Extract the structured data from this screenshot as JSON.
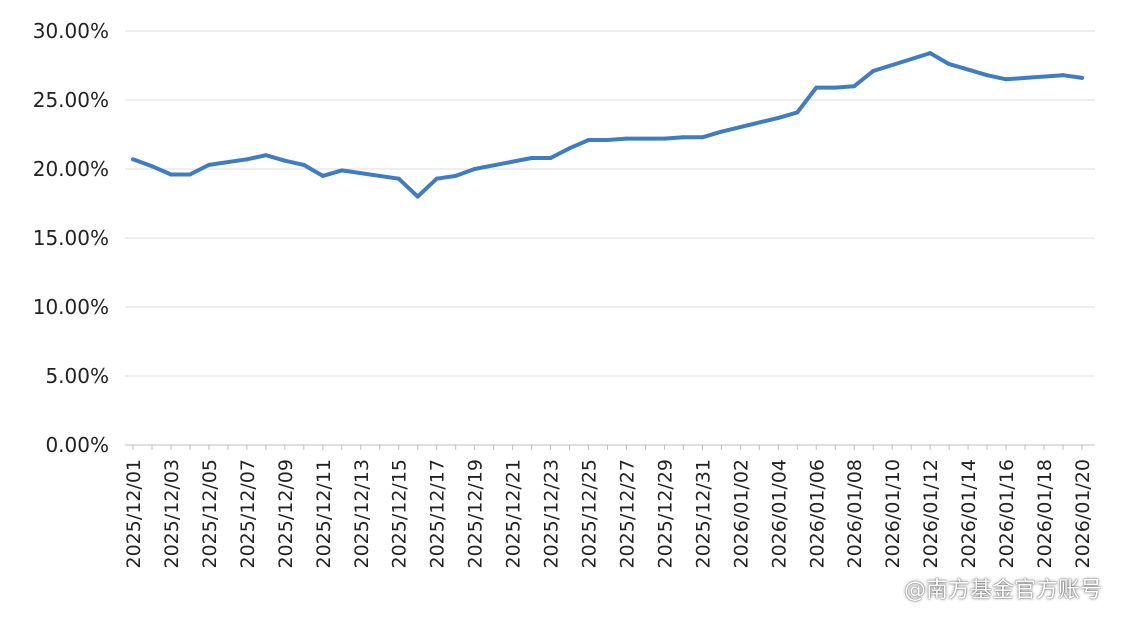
{
  "chart_data": {
    "type": "line",
    "title": "",
    "xlabel": "",
    "ylabel": "",
    "ylim": [
      0,
      30
    ],
    "y_ticks": [
      "0.00%",
      "5.00%",
      "10.00%",
      "15.00%",
      "20.00%",
      "25.00%",
      "30.00%"
    ],
    "x_tick_labels": [
      "2025/12/01",
      "2025/12/03",
      "2025/12/05",
      "2025/12/07",
      "2025/12/09",
      "2025/12/11",
      "2025/12/13",
      "2025/12/15",
      "2025/12/17",
      "2025/12/19",
      "2025/12/21",
      "2025/12/23",
      "2025/12/25",
      "2025/12/27",
      "2025/12/29",
      "2025/12/31",
      "2026/01/02",
      "2026/01/04",
      "2026/01/06",
      "2026/01/08",
      "2026/01/10",
      "2026/01/12",
      "2026/01/14",
      "2026/01/16",
      "2026/01/18",
      "2026/01/20"
    ],
    "grid": "horizontal",
    "legend": "none",
    "series": [
      {
        "color": "#3f7cc2",
        "points": [
          [
            "2025/12/01",
            20.7
          ],
          [
            "2025/12/02",
            20.2
          ],
          [
            "2025/12/03",
            19.6
          ],
          [
            "2025/12/04",
            19.6
          ],
          [
            "2025/12/05",
            20.3
          ],
          [
            "2025/12/07",
            20.7
          ],
          [
            "2025/12/08",
            21.0
          ],
          [
            "2025/12/09",
            20.6
          ],
          [
            "2025/12/10",
            20.3
          ],
          [
            "2025/12/11",
            19.5
          ],
          [
            "2025/12/12",
            19.9
          ],
          [
            "2025/12/15",
            19.3
          ],
          [
            "2025/12/16",
            18.0
          ],
          [
            "2025/12/17",
            19.3
          ],
          [
            "2025/12/18",
            19.5
          ],
          [
            "2025/12/19",
            20.0
          ],
          [
            "2025/12/22",
            20.8
          ],
          [
            "2025/12/23",
            20.8
          ],
          [
            "2025/12/24",
            21.5
          ],
          [
            "2025/12/25",
            22.1
          ],
          [
            "2025/12/26",
            22.1
          ],
          [
            "2025/12/27",
            22.2
          ],
          [
            "2025/12/29",
            22.2
          ],
          [
            "2025/12/30",
            22.3
          ],
          [
            "2025/12/31",
            22.3
          ],
          [
            "2026/01/01",
            22.7
          ],
          [
            "2026/01/04",
            23.7
          ],
          [
            "2026/01/05",
            24.1
          ],
          [
            "2026/01/06",
            25.9
          ],
          [
            "2026/01/07",
            25.9
          ],
          [
            "2026/01/08",
            26.0
          ],
          [
            "2026/01/09",
            27.1
          ],
          [
            "2026/01/12",
            28.4
          ],
          [
            "2026/01/13",
            27.6
          ],
          [
            "2026/01/14",
            27.2
          ],
          [
            "2026/01/15",
            26.8
          ],
          [
            "2026/01/16",
            26.5
          ],
          [
            "2026/01/17",
            26.6
          ],
          [
            "2026/01/19",
            26.8
          ],
          [
            "2026/01/20",
            26.6
          ]
        ]
      }
    ]
  },
  "watermark": "@南方基金官方账号",
  "colors": {
    "grid": "#dcdcdc",
    "axis": "#bfbfbf",
    "line": "#3f7cc2"
  }
}
